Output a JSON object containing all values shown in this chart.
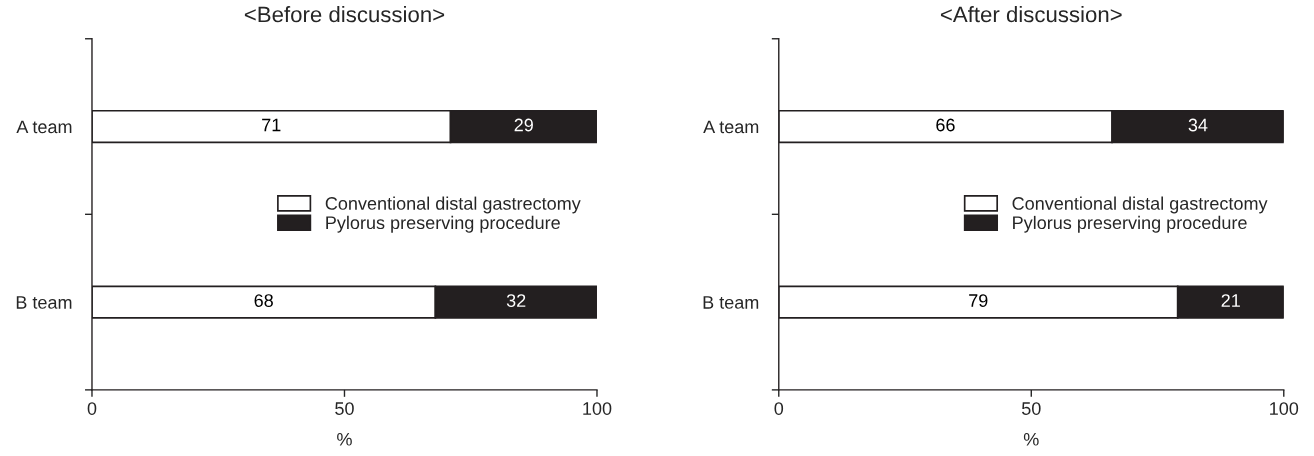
{
  "chart_data": [
    {
      "type": "bar",
      "title": "<Before discussion>",
      "orientation": "horizontal",
      "stacked": true,
      "categories": [
        "A team",
        "B team"
      ],
      "xlabel": "%",
      "xlim": [
        0,
        100
      ],
      "xticks": [
        0,
        50,
        100
      ],
      "data_labels": true,
      "legend": "center right",
      "grid": false,
      "series": [
        {
          "name": "Conventional distal gastrectomy",
          "color": "#ffffff",
          "values": [
            71,
            68
          ]
        },
        {
          "name": "Pylorus preserving procedure",
          "color": "#231f20",
          "values": [
            29,
            32
          ]
        }
      ]
    },
    {
      "type": "bar",
      "title": "<After discussion>",
      "orientation": "horizontal",
      "stacked": true,
      "categories": [
        "A team",
        "B team"
      ],
      "xlabel": "%",
      "xlim": [
        0,
        100
      ],
      "xticks": [
        0,
        50,
        100
      ],
      "data_labels": true,
      "legend": "center right",
      "grid": false,
      "series": [
        {
          "name": "Conventional distal gastrectomy",
          "color": "#ffffff",
          "values": [
            66,
            79
          ]
        },
        {
          "name": "Pylorus preserving procedure",
          "color": "#231f20",
          "values": [
            34,
            21
          ]
        }
      ]
    }
  ]
}
